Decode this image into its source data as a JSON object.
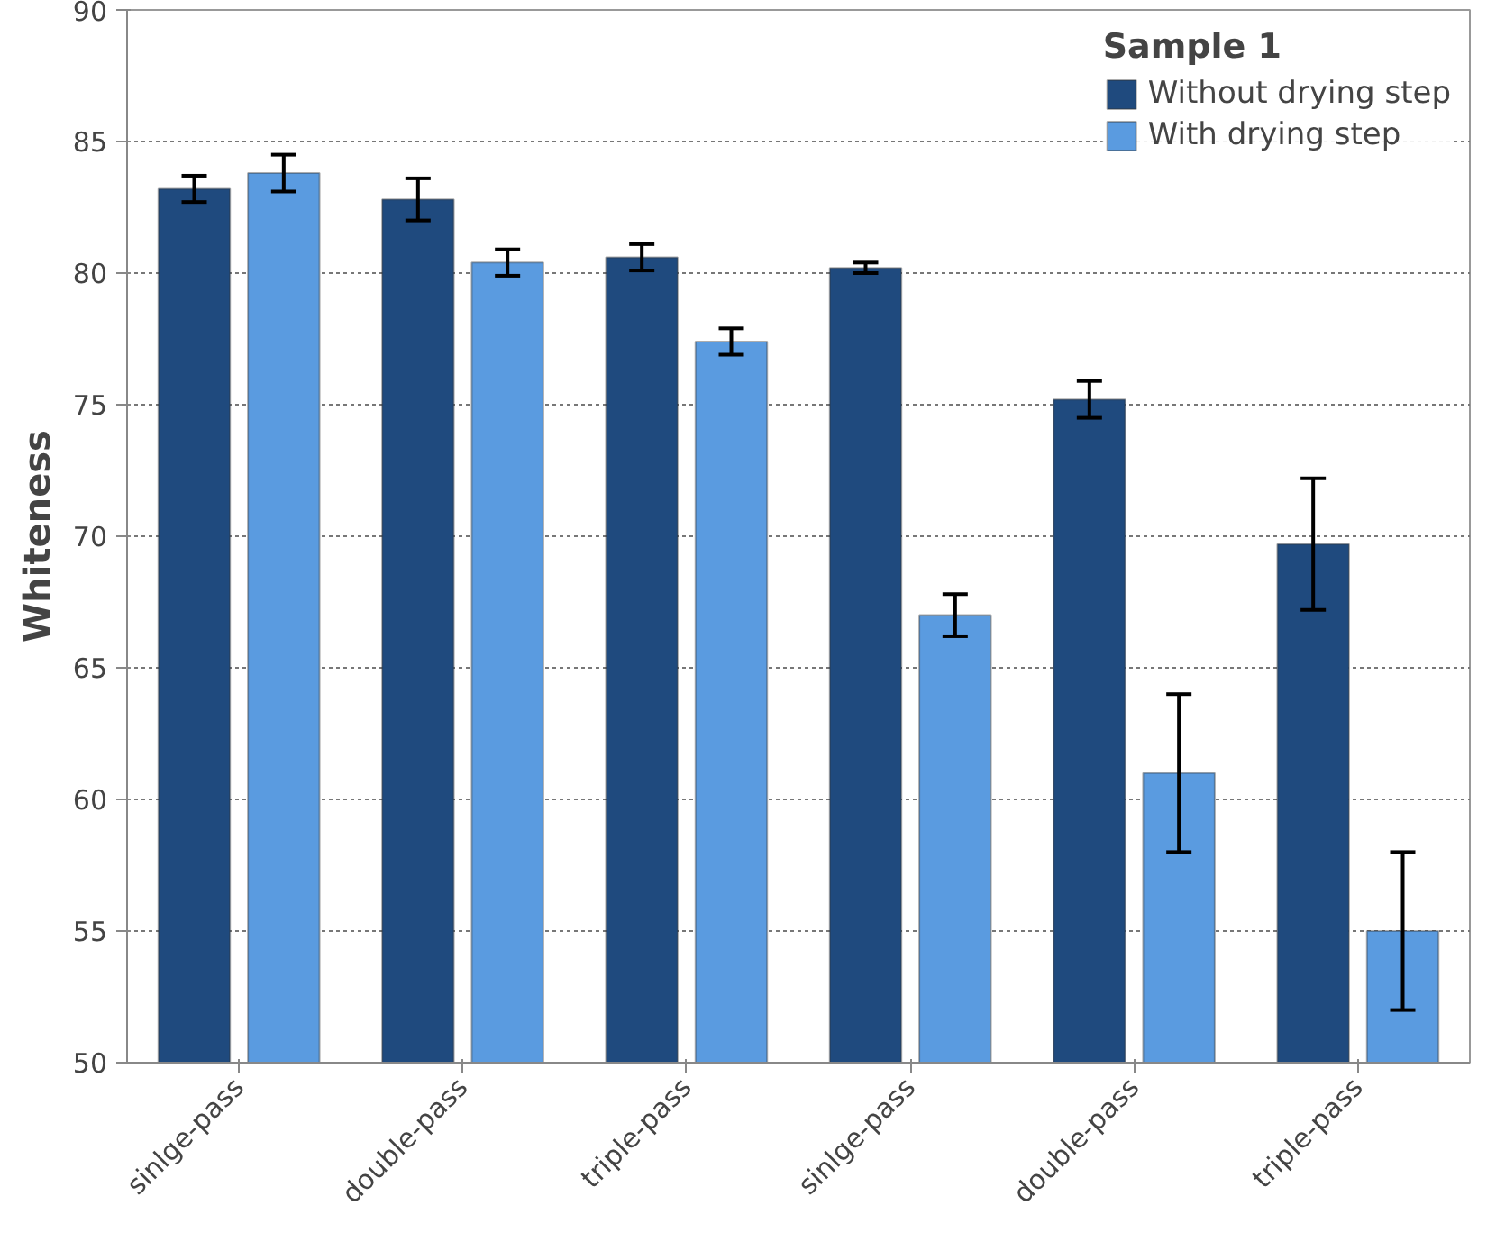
{
  "chart_data": {
    "type": "bar",
    "legend_title": "Sample 1",
    "ylabel": "Whiteness",
    "categories": [
      "sinlge-pass",
      "double-pass",
      "triple-pass",
      "sinlge-pass",
      "double-pass",
      "triple-pass"
    ],
    "series": [
      {
        "name": "Without drying step",
        "color": "#1f4a7e",
        "values": [
          83.2,
          82.8,
          80.6,
          80.2,
          75.2,
          69.7
        ],
        "errors": [
          0.5,
          0.8,
          0.5,
          0.2,
          0.7,
          2.5
        ]
      },
      {
        "name": "With drying step",
        "color": "#5a9be0",
        "values": [
          83.8,
          80.4,
          77.4,
          67.0,
          61.0,
          55.0
        ],
        "errors": [
          0.7,
          0.5,
          0.5,
          0.8,
          3.0,
          3.0
        ]
      }
    ],
    "ylim": [
      50,
      90
    ],
    "yticks": [
      50,
      55,
      60,
      65,
      70,
      75,
      80,
      85,
      90
    ],
    "grid": "y",
    "legend": "top right"
  }
}
